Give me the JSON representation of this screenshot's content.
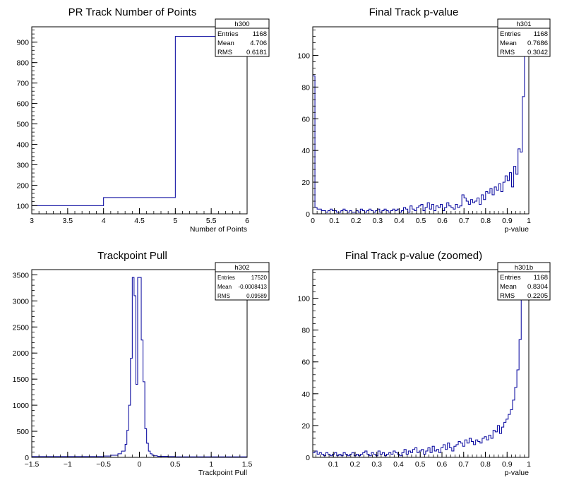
{
  "chart_data": [
    {
      "type": "bar",
      "title": "PR Track Number of Points",
      "xlabel": "Number of Points",
      "ylabel": "",
      "xlim": [
        3,
        6
      ],
      "ylim": [
        60,
        975
      ],
      "xticks": [
        "3",
        "3.5",
        "4",
        "4.5",
        "5",
        "5.5",
        "6"
      ],
      "yticks": [
        "100",
        "200",
        "300",
        "400",
        "500",
        "600",
        "700",
        "800",
        "900"
      ],
      "bins": {
        "edges": [
          3,
          4,
          5,
          6
        ],
        "values": [
          100,
          140,
          928
        ]
      },
      "stats": {
        "name": "h300",
        "rows": [
          [
            "Entries",
            "1168"
          ],
          [
            "Mean",
            "4.706"
          ],
          [
            "RMS",
            "0.6181"
          ]
        ]
      },
      "color": "#00009c"
    },
    {
      "type": "bar",
      "title": "Final Track p-value",
      "xlabel": "p-value",
      "ylabel": "",
      "xlim": [
        0,
        1
      ],
      "ylim": [
        0,
        118
      ],
      "xticks": [
        "0",
        "0.1",
        "0.2",
        "0.3",
        "0.4",
        "0.5",
        "0.6",
        "0.7",
        "0.8",
        "0.9",
        "1"
      ],
      "yticks": [
        "0",
        "20",
        "40",
        "60",
        "80",
        "100"
      ],
      "bins": {
        "edges": [
          0,
          0.01,
          0.02,
          0.03,
          0.04,
          0.05,
          0.06,
          0.07,
          0.08,
          0.09,
          0.1,
          0.11,
          0.12,
          0.13,
          0.14,
          0.15,
          0.16,
          0.17,
          0.18,
          0.19,
          0.2,
          0.21,
          0.22,
          0.23,
          0.24,
          0.25,
          0.26,
          0.27,
          0.28,
          0.29,
          0.3,
          0.31,
          0.32,
          0.33,
          0.34,
          0.35,
          0.36,
          0.37,
          0.38,
          0.39,
          0.4,
          0.41,
          0.42,
          0.43,
          0.44,
          0.45,
          0.46,
          0.47,
          0.48,
          0.49,
          0.5,
          0.51,
          0.52,
          0.53,
          0.54,
          0.55,
          0.56,
          0.57,
          0.58,
          0.59,
          0.6,
          0.61,
          0.62,
          0.63,
          0.64,
          0.65,
          0.66,
          0.67,
          0.68,
          0.69,
          0.7,
          0.71,
          0.72,
          0.73,
          0.74,
          0.75,
          0.76,
          0.77,
          0.78,
          0.79,
          0.8,
          0.81,
          0.82,
          0.83,
          0.84,
          0.85,
          0.86,
          0.87,
          0.88,
          0.89,
          0.9,
          0.91,
          0.92,
          0.93,
          0.94,
          0.95,
          0.96,
          0.97,
          0.98,
          0.99,
          1.0
        ],
        "values": [
          87,
          4,
          3,
          3,
          2,
          2,
          1,
          2,
          3,
          2,
          2,
          1,
          1,
          2,
          3,
          2,
          1,
          2,
          1,
          1,
          2,
          1,
          3,
          2,
          1,
          2,
          3,
          2,
          1,
          2,
          3,
          1,
          2,
          3,
          2,
          1,
          2,
          3,
          2,
          3,
          1,
          2,
          4,
          3,
          1,
          5,
          3,
          2,
          4,
          5,
          6,
          2,
          4,
          7,
          3,
          6,
          2,
          5,
          4,
          6,
          2,
          4,
          7,
          5,
          4,
          3,
          6,
          4,
          5,
          12,
          10,
          8,
          6,
          9,
          7,
          8,
          10,
          6,
          12,
          9,
          14,
          13,
          16,
          12,
          17,
          15,
          19,
          14,
          20,
          24,
          21,
          26,
          17,
          30,
          25,
          41,
          39,
          74,
          100,
          120
        ]
      },
      "stats": {
        "name": "h301",
        "rows": [
          [
            "Entries",
            "1168"
          ],
          [
            "Mean",
            "0.7686"
          ],
          [
            "RMS",
            "0.3042"
          ]
        ]
      },
      "color": "#00009c"
    },
    {
      "type": "bar",
      "title": "Trackpoint Pull",
      "xlabel": "Trackpoint Pull",
      "ylabel": "",
      "xlim": [
        -1.5,
        1.5
      ],
      "ylim": [
        0,
        3600
      ],
      "xticks": [
        "−1.5",
        "−1",
        "−0.5",
        "0",
        "0.5",
        "1",
        "1.5"
      ],
      "yticks": [
        "0",
        "500",
        "1000",
        "1500",
        "2000",
        "2500",
        "3000",
        "3500"
      ],
      "bins": {
        "edges": [
          -1.5,
          -0.5,
          -0.4,
          -0.3,
          -0.25,
          -0.2,
          -0.175,
          -0.15,
          -0.125,
          -0.1,
          -0.075,
          -0.05,
          -0.025,
          0,
          0.025,
          0.05,
          0.075,
          0.1,
          0.125,
          0.15,
          0.175,
          0.2,
          0.25,
          0.3,
          0.4,
          0.5,
          1.5
        ],
        "values": [
          15,
          25,
          40,
          70,
          120,
          250,
          520,
          1000,
          1900,
          3450,
          3100,
          1400,
          3450,
          3450,
          2250,
          1450,
          550,
          270,
          120,
          70,
          40,
          30,
          20,
          20,
          15,
          10
        ]
      },
      "stats": {
        "name": "h302",
        "rows": [
          [
            "Entries",
            "17520"
          ],
          [
            "Mean",
            "-0.0008413"
          ],
          [
            "RMS",
            "0.09589"
          ]
        ]
      },
      "color": "#00009c"
    },
    {
      "type": "bar",
      "title": "Final Track p-value (zoomed)",
      "xlabel": "p-value",
      "ylabel": "",
      "xlim": [
        0.005,
        1
      ],
      "ylim": [
        0,
        118
      ],
      "xticks": [
        "0.1",
        "0.2",
        "0.3",
        "0.4",
        "0.5",
        "0.6",
        "0.7",
        "0.8",
        "0.9",
        "1"
      ],
      "yticks": [
        "0",
        "20",
        "40",
        "60",
        "80",
        "100"
      ],
      "bins": {
        "edges": [
          0.005,
          0.015,
          0.025,
          0.035,
          0.045,
          0.055,
          0.065,
          0.075,
          0.085,
          0.095,
          0.105,
          0.115,
          0.125,
          0.135,
          0.145,
          0.155,
          0.165,
          0.175,
          0.185,
          0.195,
          0.205,
          0.215,
          0.225,
          0.235,
          0.245,
          0.255,
          0.265,
          0.275,
          0.285,
          0.295,
          0.305,
          0.315,
          0.325,
          0.335,
          0.345,
          0.355,
          0.365,
          0.375,
          0.385,
          0.395,
          0.405,
          0.415,
          0.425,
          0.435,
          0.445,
          0.455,
          0.465,
          0.475,
          0.485,
          0.495,
          0.505,
          0.515,
          0.525,
          0.535,
          0.545,
          0.555,
          0.565,
          0.575,
          0.585,
          0.595,
          0.605,
          0.615,
          0.625,
          0.635,
          0.645,
          0.655,
          0.665,
          0.675,
          0.685,
          0.695,
          0.705,
          0.715,
          0.725,
          0.735,
          0.745,
          0.755,
          0.765,
          0.775,
          0.785,
          0.795,
          0.805,
          0.815,
          0.825,
          0.835,
          0.845,
          0.855,
          0.865,
          0.875,
          0.885,
          0.895,
          0.905,
          0.915,
          0.925,
          0.935,
          0.945,
          0.955,
          0.965,
          0.975,
          0.985,
          0.995,
          1.0
        ],
        "values": [
          3,
          4,
          2,
          3,
          2,
          1,
          3,
          2,
          1,
          2,
          3,
          1,
          2,
          1,
          3,
          2,
          1,
          2,
          3,
          1,
          2,
          1,
          2,
          3,
          4,
          2,
          1,
          3,
          2,
          1,
          4,
          2,
          3,
          1,
          2,
          3,
          2,
          4,
          3,
          2,
          1,
          3,
          5,
          2,
          4,
          3,
          5,
          6,
          3,
          4,
          5,
          2,
          4,
          6,
          3,
          7,
          4,
          5,
          3,
          6,
          8,
          5,
          9,
          6,
          4,
          7,
          8,
          10,
          9,
          7,
          11,
          9,
          12,
          10,
          8,
          11,
          10,
          9,
          12,
          13,
          11,
          14,
          12,
          17,
          16,
          20,
          15,
          19,
          22,
          24,
          27,
          30,
          36,
          44,
          55,
          74,
          100,
          118,
          118,
          118
        ]
      },
      "stats": {
        "name": "h301b",
        "rows": [
          [
            "Entries",
            "1168"
          ],
          [
            "Mean",
            "0.8304"
          ],
          [
            "RMS",
            "0.2205"
          ]
        ]
      },
      "color": "#00009c"
    }
  ]
}
